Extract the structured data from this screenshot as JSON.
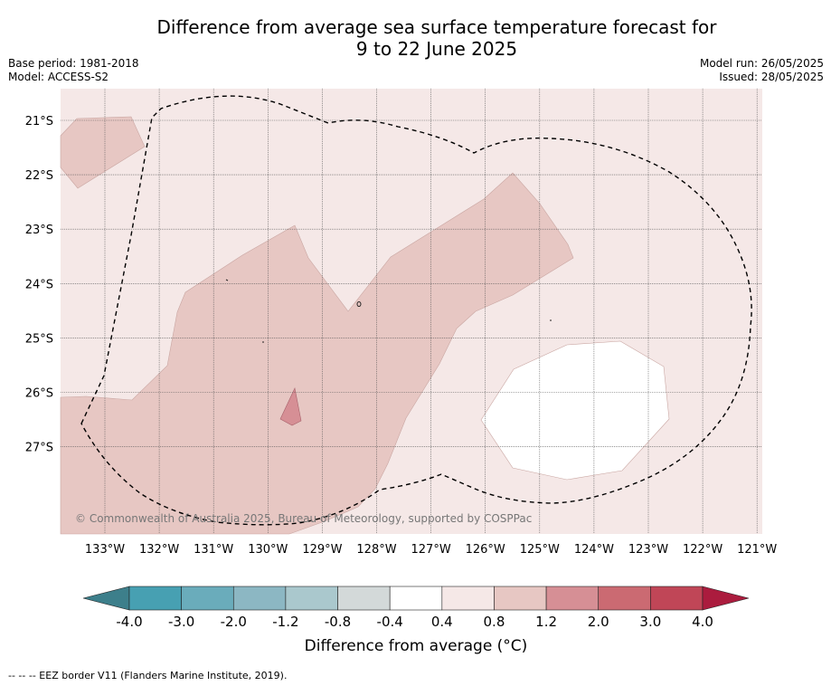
{
  "title_line1": "Difference from average sea surface temperature forecast for",
  "title_line2": "9 to 22 June 2025",
  "base_period": "Base period: 1981-2018",
  "model": "Model: ACCESS-S2",
  "model_run": "Model run: 26/05/2025",
  "issued": "Issued: 28/05/2025",
  "copyright": "© Commonwealth of Australia 2025, Bureau of Meteorology, supported by COSPPac",
  "lat_labels": [
    "21°S",
    "22°S",
    "23°S",
    "24°S",
    "25°S",
    "26°S",
    "27°S"
  ],
  "lon_labels": [
    "133°W",
    "132°W",
    "131°W",
    "130°W",
    "129°W",
    "128°W",
    "127°W",
    "126°W",
    "125°W",
    "124°W",
    "123°W",
    "122°W",
    "121°W"
  ],
  "colorbar": {
    "title": "Difference from average (°C)",
    "tick_labels": [
      "-4.0",
      "-3.0",
      "-2.0",
      "-1.2",
      "-0.8",
      "-0.4",
      "0.4",
      "0.8",
      "1.2",
      "2.0",
      "3.0",
      "4.0"
    ],
    "colors": [
      "#3d7f8b",
      "#47a0b2",
      "#6aacbb",
      "#8cb7c3",
      "#aac8cd",
      "#d3d9d9",
      "#ffffff",
      "#f5e8e7",
      "#e7c7c3",
      "#d68f95",
      "#cb6a72",
      "#c04657",
      "#ab1c3e"
    ]
  },
  "map_colors": {
    "background_class": "#f5e8e7",
    "warm_class": "#e7c7c3",
    "hot_class": "#d68f95",
    "neutral_class": "#ffffff"
  },
  "footer": "-- -- -- EEZ border V11 (Flanders Marine Institute, 2019)."
}
